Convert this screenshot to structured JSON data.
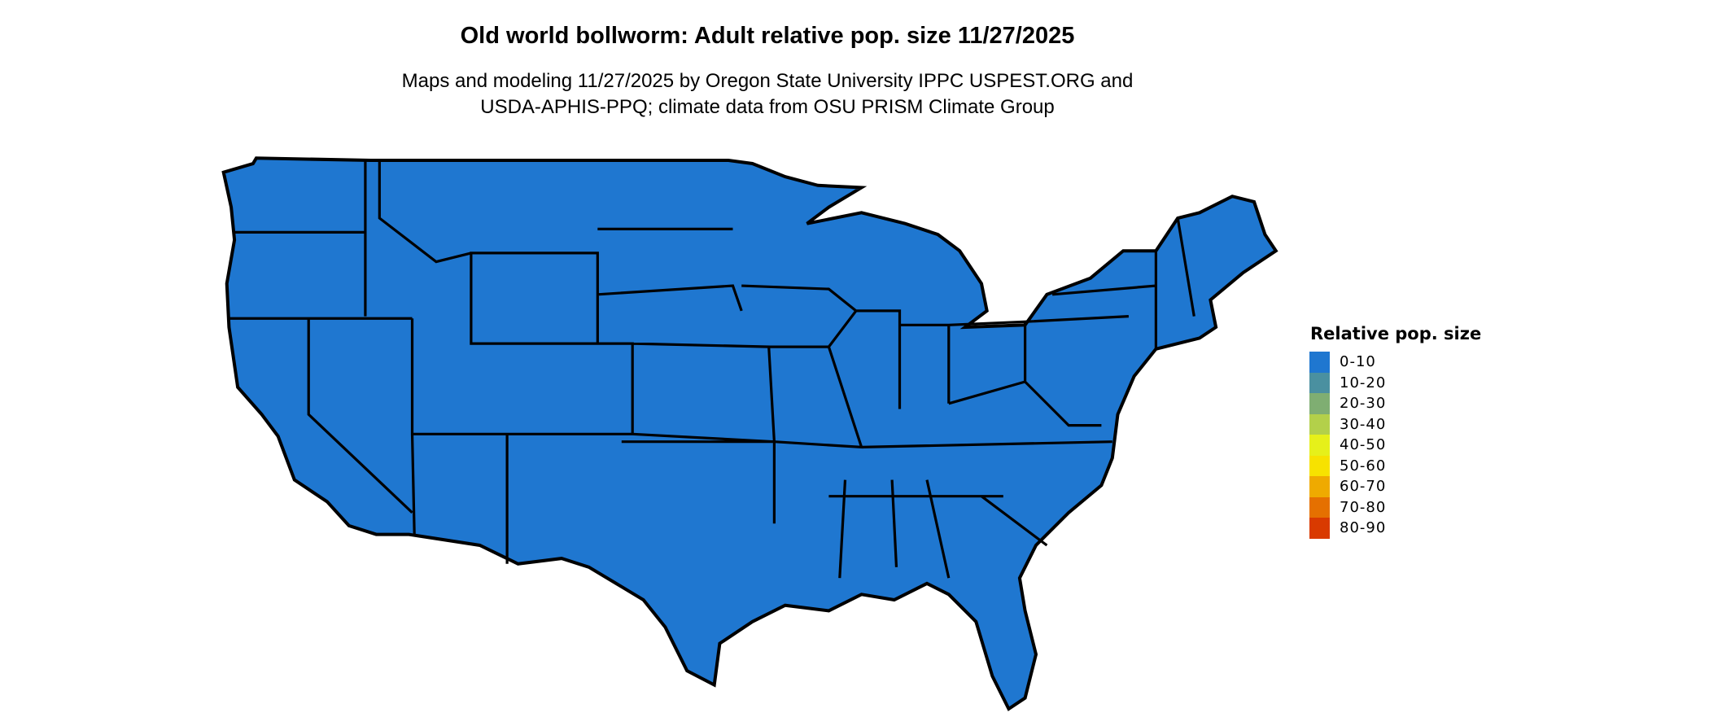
{
  "title": "Old world bollworm: Adult relative pop. size 11/27/2025",
  "subtitle_lines": [
    "Maps and modeling 11/27/2025 by Oregon State University IPPC USPEST.ORG and",
    "USDA-APHIS-PPQ; climate data from OSU PRISM Climate Group"
  ],
  "map": {
    "region": "Contiguous United States",
    "dominant_class": "0-10",
    "border_color": "#000000"
  },
  "legend": {
    "title": "Relative pop. size",
    "placement": "right",
    "items": [
      {
        "label": "0-10",
        "color": "#1f77d0"
      },
      {
        "label": "10-20",
        "color": "#4a90a0"
      },
      {
        "label": "20-30",
        "color": "#7fae72"
      },
      {
        "label": "30-40",
        "color": "#b3d04a"
      },
      {
        "label": "40-50",
        "color": "#e6f01a"
      },
      {
        "label": "50-60",
        "color": "#f7e200"
      },
      {
        "label": "60-70",
        "color": "#efaa00"
      },
      {
        "label": "70-80",
        "color": "#e57000"
      },
      {
        "label": "80-90",
        "color": "#d93a00"
      }
    ]
  }
}
